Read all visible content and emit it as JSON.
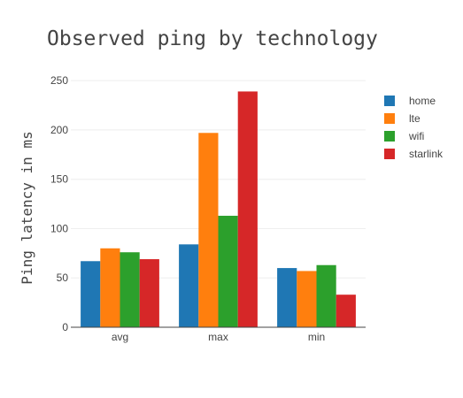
{
  "chart_data": {
    "type": "bar",
    "title": "Observed ping by technology",
    "xlabel": "",
    "ylabel": "Ping latency in ms",
    "categories": [
      "avg",
      "max",
      "min"
    ],
    "series": [
      {
        "name": "home",
        "color": "#1f77b4",
        "values": [
          67,
          84,
          60
        ]
      },
      {
        "name": "lte",
        "color": "#ff7f0e",
        "values": [
          80,
          197,
          57
        ]
      },
      {
        "name": "wifi",
        "color": "#2ca02c",
        "values": [
          76,
          113,
          63
        ]
      },
      {
        "name": "starlink",
        "color": "#d62728",
        "values": [
          69,
          239,
          33
        ]
      }
    ],
    "ylim": [
      0,
      260
    ],
    "yticks": [
      0,
      50,
      100,
      150,
      200,
      250
    ],
    "grid": true,
    "legend": "top-right"
  }
}
